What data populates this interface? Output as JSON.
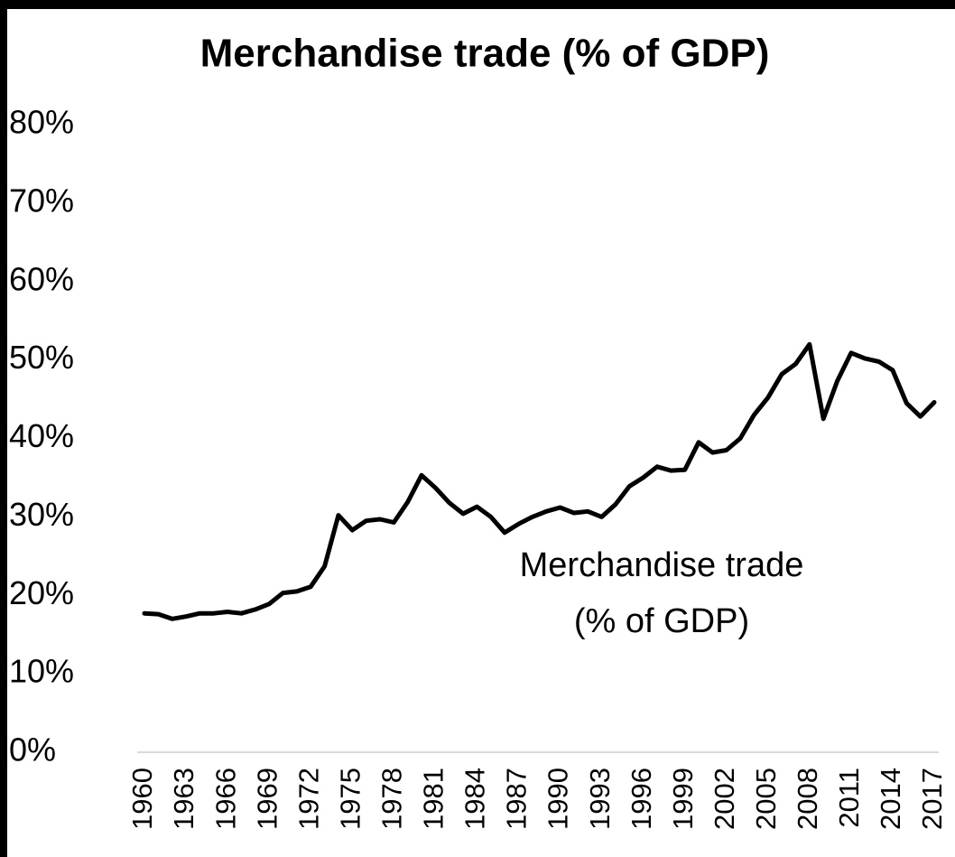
{
  "chart_data": {
    "type": "line",
    "title": "Merchandise trade (% of GDP)",
    "annotation": [
      "Merchandise trade",
      "(% of GDP)"
    ],
    "x": [
      1960,
      1961,
      1962,
      1963,
      1964,
      1965,
      1966,
      1967,
      1968,
      1969,
      1970,
      1971,
      1972,
      1973,
      1974,
      1975,
      1976,
      1977,
      1978,
      1979,
      1980,
      1981,
      1982,
      1983,
      1984,
      1985,
      1986,
      1987,
      1988,
      1989,
      1990,
      1991,
      1992,
      1993,
      1994,
      1995,
      1996,
      1997,
      1998,
      1999,
      2000,
      2001,
      2002,
      2003,
      2004,
      2005,
      2006,
      2007,
      2008,
      2009,
      2010,
      2011,
      2012,
      2013,
      2014,
      2015,
      2016,
      2017
    ],
    "values": [
      17.7,
      17.6,
      17.0,
      17.3,
      17.7,
      17.7,
      17.9,
      17.7,
      18.2,
      18.9,
      20.3,
      20.5,
      21.1,
      23.7,
      30.2,
      28.3,
      29.5,
      29.7,
      29.3,
      31.9,
      35.3,
      33.7,
      31.8,
      30.4,
      31.3,
      30.0,
      28.0,
      29.1,
      30.0,
      30.7,
      31.2,
      30.5,
      30.7,
      30.0,
      31.6,
      33.9,
      35.0,
      36.4,
      35.9,
      36.0,
      39.5,
      38.2,
      38.5,
      40.0,
      43.0,
      45.2,
      48.2,
      49.5,
      52.0,
      42.5,
      47.3,
      50.9,
      50.2,
      49.8,
      48.7,
      44.5,
      42.8,
      44.6
    ],
    "color": "#000000",
    "xlim": [
      1960,
      2017
    ],
    "xticks": [
      1960,
      1963,
      1966,
      1969,
      1972,
      1975,
      1978,
      1981,
      1984,
      1987,
      1990,
      1993,
      1996,
      1999,
      2002,
      2005,
      2008,
      2011,
      2014,
      2017
    ],
    "ylim": [
      0,
      80
    ],
    "yticks": [
      {
        "value": 0,
        "label": "0%"
      },
      {
        "value": 10,
        "label": "10%"
      },
      {
        "value": 20,
        "label": "20%"
      },
      {
        "value": 30,
        "label": "30%"
      },
      {
        "value": 40,
        "label": "40%"
      },
      {
        "value": 50,
        "label": "50%"
      },
      {
        "value": 60,
        "label": "60%"
      },
      {
        "value": 70,
        "label": "70%"
      },
      {
        "value": 80,
        "label": "80%"
      }
    ],
    "grid": false
  }
}
